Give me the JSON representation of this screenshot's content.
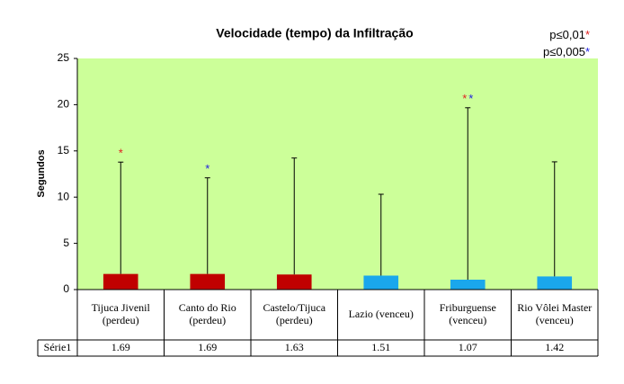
{
  "chart_data": {
    "type": "bar",
    "title": "Velocidade (tempo) da Infiltração",
    "y_label": "Segundos",
    "categories": [
      "Tijuca Jivenil (perdeu)",
      "Canto do Rio (perdeu)",
      "Castelo/Tijuca (perdeu)",
      "Lazio (venceu)",
      "Friburguense (venceu)",
      "Rio Vôlei Master (venceu)"
    ],
    "series": [
      {
        "name": "Série1",
        "values": [
          1.69,
          1.69,
          1.63,
          1.51,
          1.07,
          1.42
        ],
        "errors": [
          12.1,
          10.4,
          12.6,
          8.8,
          18.6,
          12.4
        ],
        "colors": [
          "#c00000",
          "#c00000",
          "#c00000",
          "#1aa7ec",
          "#1aa7ec",
          "#1aa7ec"
        ]
      }
    ],
    "significance": [
      [
        {
          "text": "*",
          "color": "#e02020"
        }
      ],
      [
        {
          "text": "*",
          "color": "#2020e0"
        }
      ],
      [],
      [],
      [
        {
          "text": "*",
          "color": "#e02020"
        },
        {
          "text": "*",
          "color": "#2020e0"
        }
      ],
      []
    ],
    "significance_legend": [
      {
        "text": "p≤0,01",
        "mark": "*",
        "color": "#e02020"
      },
      {
        "text": "p≤0,005",
        "mark": "*",
        "color": "#2020e0"
      }
    ],
    "ylim": [
      0,
      25
    ],
    "yticks": [
      0,
      5,
      10,
      15,
      20,
      25
    ],
    "background": "#ccff99",
    "data_table": true
  }
}
